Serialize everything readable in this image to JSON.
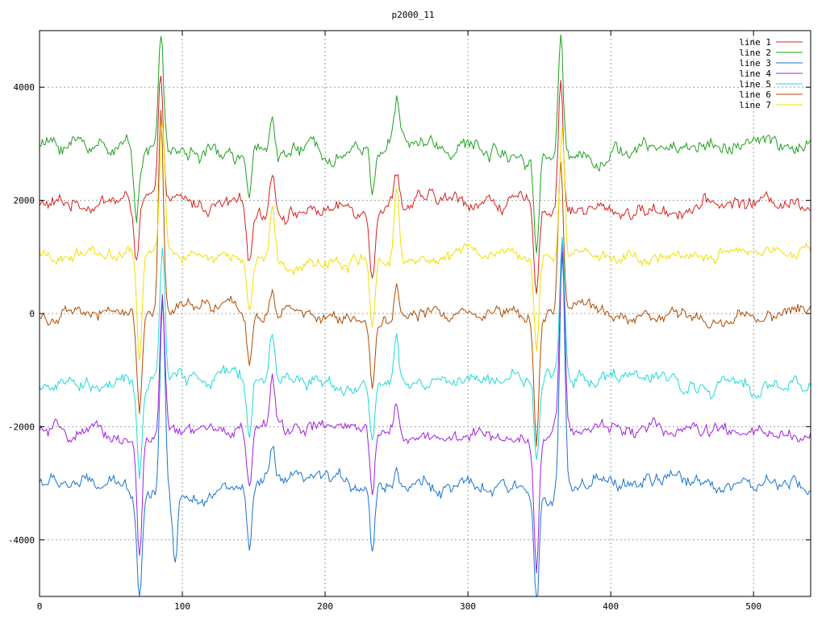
{
  "chart_data": {
    "type": "line",
    "title": "p2000_11",
    "xlim": [
      0,
      540
    ],
    "ylim": [
      -5000,
      5000
    ],
    "x_ticks": [
      0,
      100,
      200,
      300,
      400,
      500
    ],
    "y_ticks": [
      -4000,
      -2000,
      0,
      2000,
      4000
    ],
    "grid": true,
    "legend_position": "top-right",
    "series": [
      {
        "name": "line 1",
        "color": "#d62020",
        "base": 1900,
        "amp": 180,
        "spikes": [
          [
            68,
            -1000
          ],
          [
            85,
            2100
          ],
          [
            147,
            -900
          ],
          [
            163,
            800
          ],
          [
            233,
            -1100
          ],
          [
            250,
            650
          ],
          [
            348,
            -1400
          ],
          [
            365,
            2300
          ]
        ]
      },
      {
        "name": "line 2",
        "color": "#20a020",
        "base": 2900,
        "amp": 200,
        "spikes": [
          [
            68,
            -1100
          ],
          [
            85,
            2100
          ],
          [
            147,
            -900
          ],
          [
            163,
            800
          ],
          [
            233,
            -800
          ],
          [
            250,
            800
          ],
          [
            348,
            -1600
          ],
          [
            365,
            2200
          ]
        ]
      },
      {
        "name": "line 3",
        "color": "#1a74d0",
        "base": -3050,
        "amp": 180,
        "spikes": [
          [
            70,
            -1800
          ],
          [
            86,
            3400
          ],
          [
            95,
            -1200
          ],
          [
            147,
            -1200
          ],
          [
            163,
            600
          ],
          [
            233,
            -1200
          ],
          [
            250,
            300
          ],
          [
            348,
            -2000
          ],
          [
            366,
            4300
          ]
        ]
      },
      {
        "name": "line 4",
        "color": "#a020e0",
        "base": -2100,
        "amp": 170,
        "spikes": [
          [
            70,
            -2200
          ],
          [
            86,
            2400
          ],
          [
            147,
            -1000
          ],
          [
            163,
            800
          ],
          [
            233,
            -1200
          ],
          [
            250,
            600
          ],
          [
            348,
            -2300
          ],
          [
            366,
            3300
          ]
        ]
      },
      {
        "name": "line 5",
        "color": "#20d8d8",
        "base": -1200,
        "amp": 180,
        "spikes": [
          [
            70,
            -1600
          ],
          [
            86,
            2400
          ],
          [
            147,
            -1100
          ],
          [
            163,
            800
          ],
          [
            233,
            -1000
          ],
          [
            250,
            700
          ],
          [
            348,
            -1300
          ],
          [
            366,
            2500
          ]
        ]
      },
      {
        "name": "line 6",
        "color": "#b04a00",
        "base": 0,
        "amp": 160,
        "spikes": [
          [
            70,
            -1800
          ],
          [
            85,
            3500
          ],
          [
            147,
            -1000
          ],
          [
            163,
            500
          ],
          [
            233,
            -1200
          ],
          [
            250,
            600
          ],
          [
            348,
            -2300
          ],
          [
            365,
            2600
          ]
        ]
      },
      {
        "name": "line 7",
        "color": "#f0e000",
        "base": 1000,
        "amp": 150,
        "spikes": [
          [
            70,
            -1900
          ],
          [
            86,
            2300
          ],
          [
            147,
            -900
          ],
          [
            163,
            900
          ],
          [
            233,
            -1200
          ],
          [
            250,
            1300
          ],
          [
            348,
            -1600
          ],
          [
            366,
            2300
          ]
        ]
      }
    ]
  }
}
